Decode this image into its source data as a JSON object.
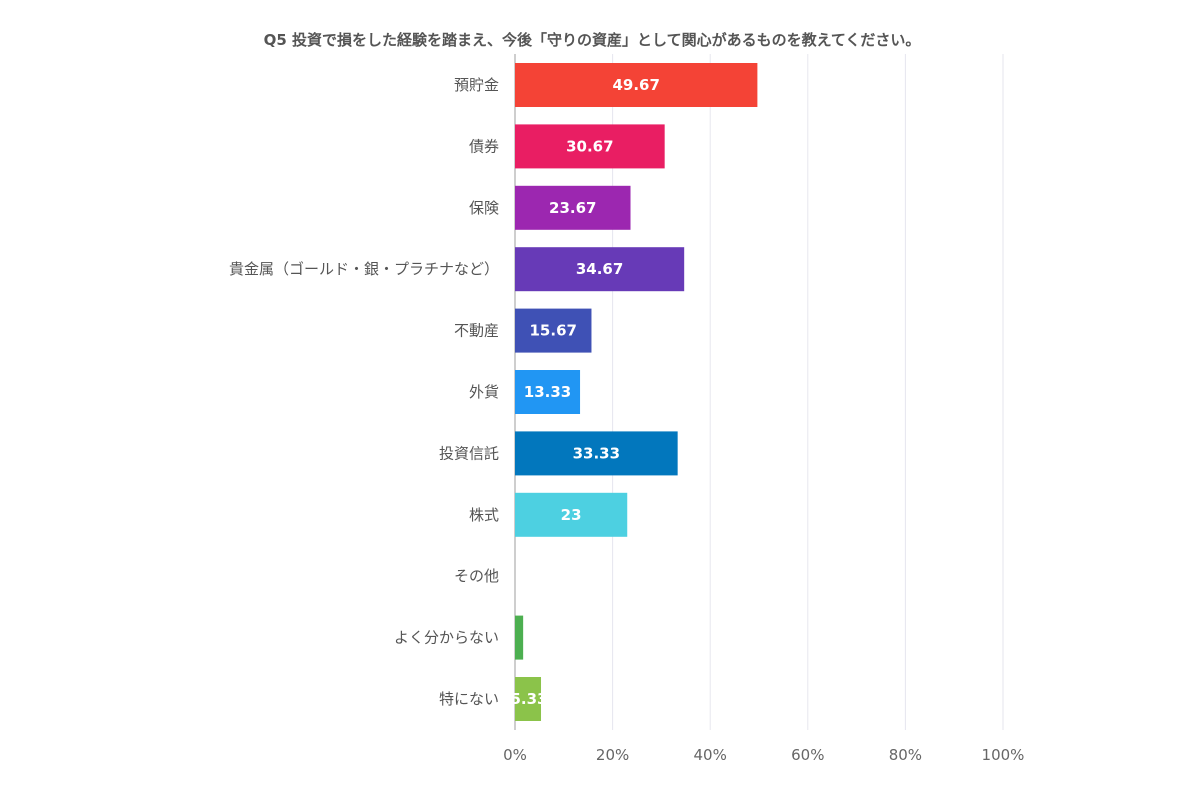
{
  "chart_data": {
    "type": "bar",
    "orientation": "horizontal",
    "title": "Q5 投資で損をした経験を踏まえ、今後「守りの資産」として関心があるものを教えてください。",
    "categories": [
      "預貯金",
      "債券",
      "保険",
      "貴金属（ゴールド・銀・プラチナなど）",
      "不動産",
      "外貨",
      "投資信託",
      "株式",
      "その他",
      "よく分からない",
      "特にない"
    ],
    "values": [
      49.67,
      30.67,
      23.67,
      34.67,
      15.67,
      13.33,
      33.33,
      23,
      0,
      1.67,
      5.33
    ],
    "data_labels": [
      "49.67",
      "30.67",
      "23.67",
      "34.67",
      "15.67",
      "13.33",
      "33.33",
      "23",
      "",
      "",
      "5.33"
    ],
    "colors": [
      "#f44336",
      "#e91e63",
      "#9c27b0",
      "#673ab7",
      "#3f51b5",
      "#2196f3",
      "#0277bd",
      "#4dd0e1",
      "#26a69a",
      "#4caf50",
      "#8bc34a"
    ],
    "xlim": [
      0,
      100
    ],
    "x_ticks": [
      "0%",
      "20%",
      "40%",
      "60%",
      "80%",
      "100%"
    ],
    "grid": true,
    "legend": "none"
  }
}
